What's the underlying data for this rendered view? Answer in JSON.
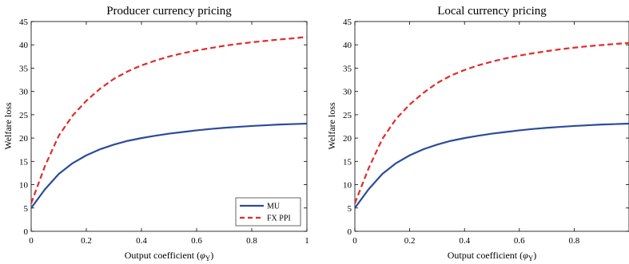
{
  "chart_data": [
    {
      "type": "line",
      "title": "Producer currency pricing",
      "xlabel": "Output coefficient (",
      "xlabel_symbol": "φ",
      "xlabel_sub": "Y",
      "xlabel_close": ")",
      "ylabel": "Welfare loss",
      "xlim": [
        0,
        1
      ],
      "ylim": [
        0,
        45
      ],
      "xticks": [
        "0",
        "0.2",
        "0.4",
        "0.6",
        "0.8",
        "1"
      ],
      "xtick_values": [
        0,
        0.2,
        0.4,
        0.6,
        0.8,
        1
      ],
      "yticks": [
        "0",
        "5",
        "10",
        "15",
        "20",
        "25",
        "30",
        "35",
        "40",
        "45"
      ],
      "ytick_values": [
        0,
        5,
        10,
        15,
        20,
        25,
        30,
        35,
        40,
        45
      ],
      "grid": false,
      "legend": {
        "position": "bottom-right",
        "entries": [
          "MU",
          "FX PPI"
        ]
      },
      "x": [
        0,
        0.05,
        0.1,
        0.15,
        0.2,
        0.25,
        0.3,
        0.35,
        0.4,
        0.45,
        0.5,
        0.55,
        0.6,
        0.65,
        0.7,
        0.75,
        0.8,
        0.85,
        0.9,
        0.95,
        1
      ],
      "series": [
        {
          "name": "MU",
          "style": "solid",
          "color": "#2b4b9b",
          "values": [
            5.0,
            9.0,
            12.3,
            14.6,
            16.3,
            17.6,
            18.6,
            19.4,
            20.0,
            20.5,
            20.95,
            21.3,
            21.65,
            21.95,
            22.2,
            22.4,
            22.6,
            22.75,
            22.9,
            23.0,
            23.1
          ]
        },
        {
          "name": "FX PPI",
          "style": "dashed",
          "color": "#e32a2a",
          "values": [
            6.0,
            14.0,
            20.5,
            24.8,
            28.0,
            30.6,
            32.7,
            34.3,
            35.6,
            36.6,
            37.5,
            38.2,
            38.8,
            39.3,
            39.8,
            40.2,
            40.55,
            40.85,
            41.15,
            41.4,
            41.7
          ]
        }
      ]
    },
    {
      "type": "line",
      "title": "Local currency pricing",
      "xlabel": "Output coefficient (",
      "xlabel_symbol": "φ",
      "xlabel_sub": "Y",
      "xlabel_close": ")",
      "ylabel": "Welfare loss",
      "xlim": [
        0,
        1
      ],
      "ylim": [
        0,
        45
      ],
      "xticks": [
        "0",
        "0.2",
        "0.4",
        "0.6",
        "0.8"
      ],
      "xtick_values": [
        0,
        0.2,
        0.4,
        0.6,
        0.8
      ],
      "yticks": [
        "0",
        "5",
        "10",
        "15",
        "20",
        "25",
        "30",
        "35",
        "40",
        "45"
      ],
      "ytick_values": [
        0,
        5,
        10,
        15,
        20,
        25,
        30,
        35,
        40,
        45
      ],
      "grid": false,
      "legend": null,
      "x": [
        0,
        0.05,
        0.1,
        0.15,
        0.2,
        0.25,
        0.3,
        0.35,
        0.4,
        0.45,
        0.5,
        0.55,
        0.6,
        0.65,
        0.7,
        0.75,
        0.8,
        0.85,
        0.9,
        0.95,
        1
      ],
      "series": [
        {
          "style": "solid",
          "color": "#2b4b9b",
          "values": [
            5.0,
            9.0,
            12.3,
            14.6,
            16.3,
            17.6,
            18.6,
            19.4,
            20.0,
            20.5,
            20.95,
            21.3,
            21.65,
            21.95,
            22.2,
            22.4,
            22.6,
            22.75,
            22.9,
            23.0,
            23.1
          ]
        },
        {
          "style": "dashed",
          "color": "#e32a2a",
          "values": [
            6.0,
            13.5,
            19.8,
            24.1,
            27.2,
            29.7,
            31.8,
            33.4,
            34.6,
            35.6,
            36.4,
            37.1,
            37.7,
            38.2,
            38.65,
            39.05,
            39.4,
            39.7,
            39.95,
            40.2,
            40.4
          ]
        }
      ]
    }
  ]
}
